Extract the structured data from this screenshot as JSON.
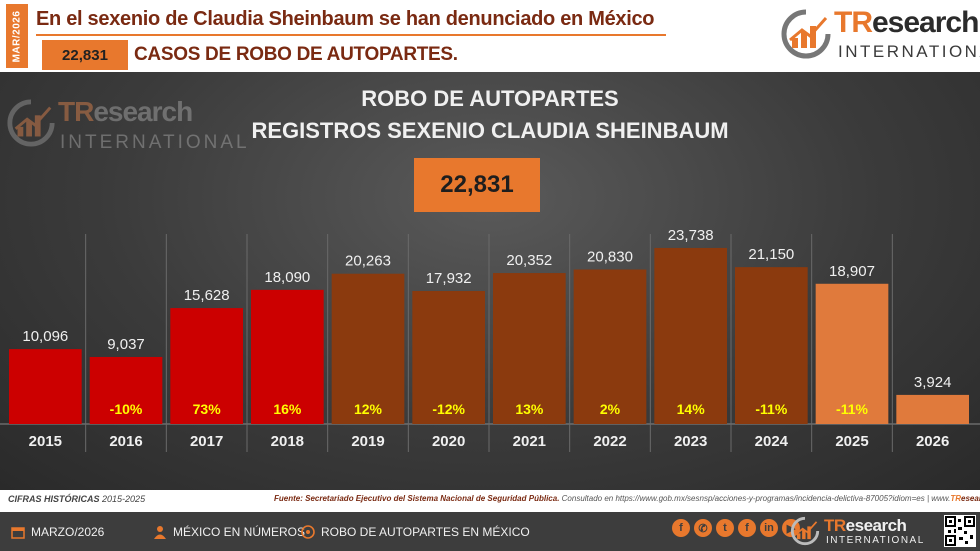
{
  "header": {
    "date_tag": "MAR/2026",
    "headline": "En el sexenio de Claudia Sheinbaum se han denunciado en México",
    "count": "22,831",
    "subline": "CASOS DE ROBO DE AUTOPARTES.",
    "logo_main_a": "TR",
    "logo_main_b": "esearch",
    "logo_sub": "INTERNATIONAL"
  },
  "chart_data": {
    "type": "bar",
    "title": "ROBO DE AUTOPARTES",
    "subtitle": "REGISTROS SEXENIO CLAUDIA SHEINBAUM",
    "total": "22,831",
    "categories": [
      "2015",
      "2016",
      "2017",
      "2018",
      "2019",
      "2020",
      "2021",
      "2022",
      "2023",
      "2024",
      "2025",
      "2026"
    ],
    "values": [
      10096,
      9037,
      15628,
      18090,
      20263,
      17932,
      20352,
      20830,
      23738,
      21150,
      18907,
      3924
    ],
    "value_labels": [
      "10,096",
      "9,037",
      "15,628",
      "18,090",
      "20,263",
      "17,932",
      "20,352",
      "20,830",
      "23,738",
      "21,150",
      "18,907",
      "3,924"
    ],
    "pct_change": [
      "",
      "-10%",
      "73%",
      "16%",
      "12%",
      "-12%",
      "13%",
      "2%",
      "14%",
      "-11%",
      "-11%",
      ""
    ],
    "colors": [
      "#cc0000",
      "#cc0000",
      "#cc0000",
      "#cc0000",
      "#8b3a0e",
      "#8b3a0e",
      "#8b3a0e",
      "#8b3a0e",
      "#8b3a0e",
      "#8b3a0e",
      "#e07a3c",
      "#e07a3c"
    ],
    "ylim": [
      0,
      24000
    ]
  },
  "footer": {
    "hist_label": "CIFRAS HISTÓRICAS",
    "hist_range": "2015-2025",
    "source_label": "Fuente: Secretariado Ejecutivo del Sistema Nacional de Seguridad Pública.",
    "source_rest": " Consultado en https://www.gob.mx/sesnsp/acciones-y-programas/incidencia-delictiva-87005?idiom=es | www.",
    "source_site_a": "TR",
    "source_site_b": "esearch.Mx",
    "source_end": "|",
    "item1": "MARZO/2026",
    "item2": "MÉXICO EN NÚMEROS",
    "item3": "ROBO DE AUTOPARTES EN MÉXICO",
    "social": [
      "f",
      "✆",
      "t",
      "f",
      "in",
      "▶"
    ]
  },
  "colors": {
    "accent": "#e8782d",
    "headline": "#7a2a12",
    "red": "#cc0000",
    "brown": "#8b3a0e",
    "orange": "#e07a3c",
    "pct": "#ffff00"
  }
}
